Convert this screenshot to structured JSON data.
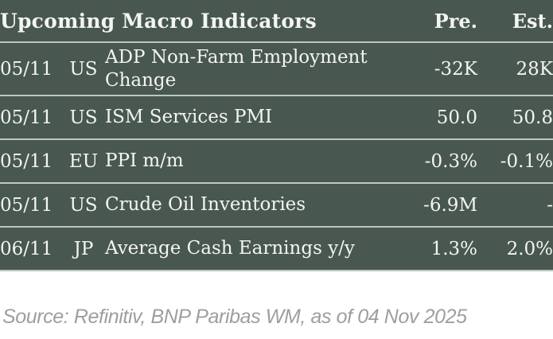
{
  "chart_data": {
    "type": "table",
    "title": "Upcoming Macro Indicators",
    "columns": {
      "pre": "Pre.",
      "est": "Est."
    },
    "rows": [
      {
        "date": "05/11",
        "country": "US",
        "indicator": "ADP Non-Farm Employment Change",
        "pre": "-32K",
        "est": "28K"
      },
      {
        "date": "05/11",
        "country": "US",
        "indicator": "ISM Services PMI",
        "pre": "50.0",
        "est": "50.8"
      },
      {
        "date": "05/11",
        "country": "EU",
        "indicator": "PPI m/m",
        "pre": "-0.3%",
        "est": "-0.1%"
      },
      {
        "date": "05/11",
        "country": "US",
        "indicator": "Crude Oil Inventories",
        "pre": "-6.9M",
        "est": "-"
      },
      {
        "date": "06/11",
        "country": "JP",
        "indicator": "Average Cash Earnings y/y",
        "pre": "1.3%",
        "est": "2.0%"
      }
    ],
    "source": "Source: Refinitiv, BNP Paribas WM, as of 04 Nov 2025",
    "layout": "header row + 5 data rows; Pre./Est. right-aligned; pale separator lines between rows"
  },
  "colors": {
    "table_background": "#485750",
    "separator_line": "#BCC7BD",
    "table_text": "#F3F5F2",
    "source_text": "#9E9E9E",
    "page_background": "#FFFFFF"
  }
}
